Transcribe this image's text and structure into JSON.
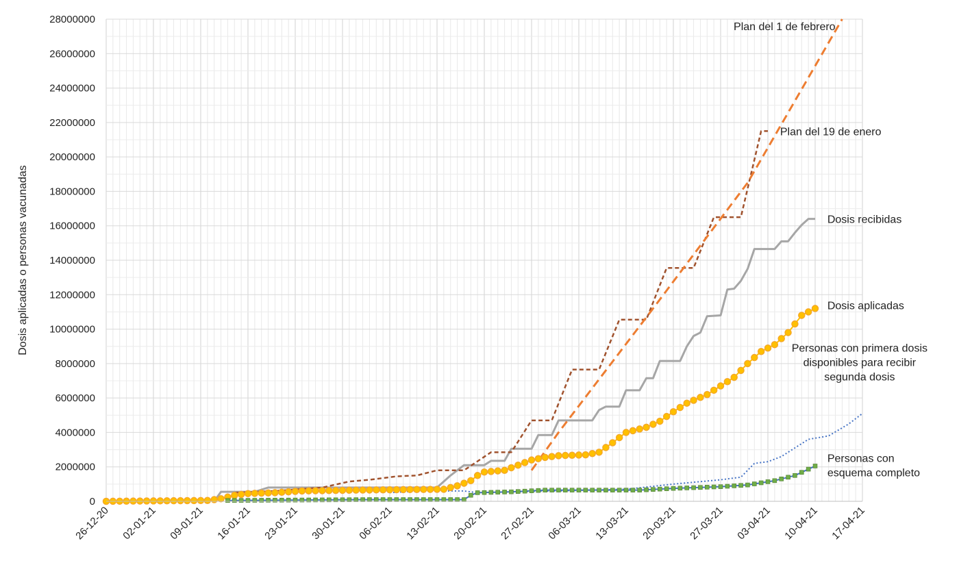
{
  "chart_data": {
    "type": "line",
    "title": "",
    "ylabel": "Dosis aplicadas o personas vacunadas",
    "xlabel": "",
    "ylim": [
      0,
      28000000
    ],
    "y_ticks": [
      0,
      2000000,
      4000000,
      6000000,
      8000000,
      10000000,
      12000000,
      14000000,
      16000000,
      18000000,
      20000000,
      22000000,
      24000000,
      26000000,
      28000000
    ],
    "y_tick_labels": [
      "0",
      "2000000",
      "4000000",
      "6000000",
      "8000000",
      "10000000",
      "12000000",
      "14000000",
      "16000000",
      "18000000",
      "20000000",
      "22000000",
      "24000000",
      "26000000",
      "28000000"
    ],
    "x_range": [
      "2020-12-26",
      "2021-04-17"
    ],
    "x_tick_labels": [
      "26-12-20",
      "02-01-21",
      "09-01-21",
      "16-01-21",
      "23-01-21",
      "30-01-21",
      "06-02-21",
      "13-02-21",
      "20-02-21",
      "27-02-21",
      "06-03-21",
      "13-03-21",
      "20-03-21",
      "27-03-21",
      "03-04-21",
      "10-04-21",
      "17-04-21"
    ],
    "grid": true,
    "legend": "none",
    "series": [
      {
        "name": "Plan del 1 de febrero",
        "color": "#ED7D31",
        "style": "dashed",
        "points": [
          [
            "2021-02-27",
            1800000
          ],
          [
            "2021-03-03",
            4000000
          ],
          [
            "2021-03-17",
            11200000
          ],
          [
            "2021-03-31",
            18500000
          ],
          [
            "2021-04-14",
            28000000
          ]
        ]
      },
      {
        "name": "Plan del 19 de enero",
        "color": "#A0522D",
        "style": "dashed-step",
        "points": [
          [
            "2021-01-14",
            500000
          ],
          [
            "2021-01-20",
            600000
          ],
          [
            "2021-01-27",
            800000
          ],
          [
            "2021-01-31",
            1150000
          ],
          [
            "2021-02-03",
            1250000
          ],
          [
            "2021-02-07",
            1450000
          ],
          [
            "2021-02-10",
            1500000
          ],
          [
            "2021-02-13",
            1800000
          ],
          [
            "2021-02-17",
            1800000
          ],
          [
            "2021-02-21",
            2850000
          ],
          [
            "2021-02-24",
            2850000
          ],
          [
            "2021-02-27",
            4700000
          ],
          [
            "2021-03-02",
            4700000
          ],
          [
            "2021-03-05",
            7650000
          ],
          [
            "2021-03-09",
            7650000
          ],
          [
            "2021-03-12",
            10550000
          ],
          [
            "2021-03-16",
            10550000
          ],
          [
            "2021-03-19",
            13550000
          ],
          [
            "2021-03-23",
            13550000
          ],
          [
            "2021-03-26",
            16500000
          ],
          [
            "2021-03-30",
            16500000
          ],
          [
            "2021-04-02",
            21500000
          ],
          [
            "2021-04-03",
            21500000
          ]
        ]
      },
      {
        "name": "Dosis recibidas",
        "color": "#A6A6A6",
        "style": "solid-step",
        "points": [
          [
            "2021-01-11",
            0
          ],
          [
            "2021-01-12",
            550000
          ],
          [
            "2021-01-17",
            550000
          ],
          [
            "2021-01-19",
            800000
          ],
          [
            "2021-02-13",
            800000
          ],
          [
            "2021-02-15",
            1500000
          ],
          [
            "2021-02-17",
            2100000
          ],
          [
            "2021-02-20",
            2100000
          ],
          [
            "2021-02-21",
            2350000
          ],
          [
            "2021-02-23",
            2350000
          ],
          [
            "2021-02-24",
            3050000
          ],
          [
            "2021-02-27",
            3050000
          ],
          [
            "2021-02-28",
            3850000
          ],
          [
            "2021-03-02",
            3850000
          ],
          [
            "2021-03-03",
            4700000
          ],
          [
            "2021-03-08",
            4700000
          ],
          [
            "2021-03-09",
            5300000
          ],
          [
            "2021-03-10",
            5500000
          ],
          [
            "2021-03-12",
            5500000
          ],
          [
            "2021-03-13",
            6450000
          ],
          [
            "2021-03-15",
            6450000
          ],
          [
            "2021-03-16",
            7150000
          ],
          [
            "2021-03-17",
            7150000
          ],
          [
            "2021-03-18",
            8150000
          ],
          [
            "2021-03-21",
            8150000
          ],
          [
            "2021-03-22",
            9000000
          ],
          [
            "2021-03-23",
            9600000
          ],
          [
            "2021-03-24",
            9800000
          ],
          [
            "2021-03-25",
            10750000
          ],
          [
            "2021-03-27",
            10800000
          ],
          [
            "2021-03-28",
            12300000
          ],
          [
            "2021-03-29",
            12350000
          ],
          [
            "2021-03-30",
            12800000
          ],
          [
            "2021-03-31",
            13500000
          ],
          [
            "2021-04-01",
            14650000
          ],
          [
            "2021-04-04",
            14650000
          ],
          [
            "2021-04-05",
            15100000
          ],
          [
            "2021-04-06",
            15100000
          ],
          [
            "2021-04-07",
            15600000
          ],
          [
            "2021-04-08",
            16050000
          ],
          [
            "2021-04-09",
            16400000
          ],
          [
            "2021-04-10",
            16400000
          ]
        ]
      },
      {
        "name": "Dosis aplicadas",
        "color": "#FFC000",
        "marker_color": "#F4A62A",
        "style": "line-markers",
        "points": [
          [
            "2020-12-26",
            0
          ],
          [
            "2021-01-10",
            50000
          ],
          [
            "2021-01-12",
            150000
          ],
          [
            "2021-01-14",
            350000
          ],
          [
            "2021-01-16",
            450000
          ],
          [
            "2021-01-20",
            500000
          ],
          [
            "2021-01-24",
            600000
          ],
          [
            "2021-02-01",
            650000
          ],
          [
            "2021-02-08",
            680000
          ],
          [
            "2021-02-14",
            700000
          ],
          [
            "2021-02-16",
            900000
          ],
          [
            "2021-02-18",
            1200000
          ],
          [
            "2021-02-19",
            1500000
          ],
          [
            "2021-02-20",
            1700000
          ],
          [
            "2021-02-23",
            1800000
          ],
          [
            "2021-02-25",
            2100000
          ],
          [
            "2021-02-27",
            2400000
          ],
          [
            "2021-03-01",
            2550000
          ],
          [
            "2021-03-03",
            2650000
          ],
          [
            "2021-03-07",
            2700000
          ],
          [
            "2021-03-09",
            2850000
          ],
          [
            "2021-03-11",
            3400000
          ],
          [
            "2021-03-13",
            4000000
          ],
          [
            "2021-03-16",
            4300000
          ],
          [
            "2021-03-18",
            4650000
          ],
          [
            "2021-03-20",
            5200000
          ],
          [
            "2021-03-22",
            5700000
          ],
          [
            "2021-03-25",
            6200000
          ],
          [
            "2021-03-27",
            6700000
          ],
          [
            "2021-03-29",
            7200000
          ],
          [
            "2021-03-31",
            8000000
          ],
          [
            "2021-04-02",
            8700000
          ],
          [
            "2021-04-04",
            9100000
          ],
          [
            "2021-04-06",
            9800000
          ],
          [
            "2021-04-08",
            10800000
          ],
          [
            "2021-04-10",
            11200000
          ]
        ]
      },
      {
        "name": "Personas con primera dosis disponibles para recibir segunda dosis",
        "color": "#4472C4",
        "style": "dotted",
        "points": [
          [
            "2021-02-06",
            500000
          ],
          [
            "2021-02-10",
            600000
          ],
          [
            "2021-02-17",
            600000
          ],
          [
            "2021-02-19",
            500000
          ],
          [
            "2021-03-13",
            700000
          ],
          [
            "2021-03-20",
            1000000
          ],
          [
            "2021-03-27",
            1250000
          ],
          [
            "2021-03-30",
            1400000
          ],
          [
            "2021-04-01",
            2200000
          ],
          [
            "2021-04-03",
            2300000
          ],
          [
            "2021-04-05",
            2600000
          ],
          [
            "2021-04-09",
            3600000
          ],
          [
            "2021-04-12",
            3800000
          ],
          [
            "2021-04-15",
            4500000
          ],
          [
            "2021-04-17",
            5100000
          ]
        ]
      },
      {
        "name": "Personas con esquema completo",
        "color": "#4472C4",
        "marker_color": "#70AD47",
        "style": "line-square-markers",
        "points": [
          [
            "2021-01-13",
            50000
          ],
          [
            "2021-02-03",
            100000
          ],
          [
            "2021-02-17",
            100000
          ],
          [
            "2021-02-18",
            350000
          ],
          [
            "2021-02-19",
            500000
          ],
          [
            "2021-02-24",
            550000
          ],
          [
            "2021-03-01",
            650000
          ],
          [
            "2021-03-15",
            650000
          ],
          [
            "2021-03-20",
            750000
          ],
          [
            "2021-03-27",
            850000
          ],
          [
            "2021-03-31",
            950000
          ],
          [
            "2021-04-04",
            1200000
          ],
          [
            "2021-04-07",
            1500000
          ],
          [
            "2021-04-10",
            2050000
          ]
        ]
      }
    ],
    "annotations": [
      {
        "text": "Plan del 1 de febrero",
        "lines": [
          "Plan del 1 de febrero"
        ],
        "align": "end",
        "date": "2021-04-13",
        "value": 27600000
      },
      {
        "text": "Plan del 19 de enero",
        "lines": [
          "Plan del 19 de enero"
        ],
        "align": "start",
        "date": "2021-04-04",
        "value": 21500000
      },
      {
        "text": "Dosis recibidas",
        "lines": [
          "Dosis recibidas"
        ],
        "align": "start",
        "date": "2021-04-11",
        "value": 16400000
      },
      {
        "text": "Dosis aplicadas",
        "lines": [
          "Dosis aplicadas"
        ],
        "align": "start",
        "date": "2021-04-11",
        "value": 11400000
      },
      {
        "text": "Personas con primera dosis disponibles para recibir segunda dosis",
        "lines": [
          "Personas con primera dosis",
          "disponibles para recibir",
          "segunda dosis"
        ],
        "align": "middle",
        "date": "2021-04-11",
        "value": 8100000
      },
      {
        "text": "Personas con esquema completo",
        "lines": [
          "Personas con",
          "esquema completo"
        ],
        "align": "start",
        "date": "2021-04-11",
        "value": 2100000
      }
    ]
  }
}
